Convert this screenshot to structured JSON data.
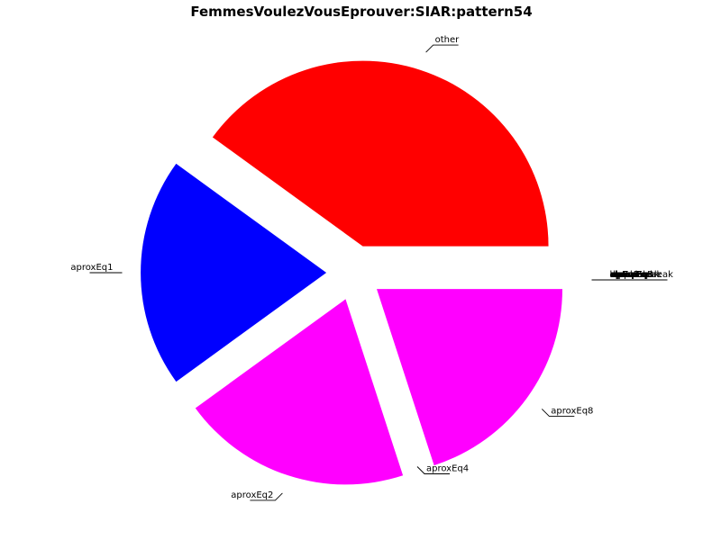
{
  "chart_data": {
    "type": "pie",
    "title": "FemmesVoulezVousEprouver:SIAR:pattern54",
    "slices": [
      {
        "label": "other",
        "value": 40,
        "color": "#ff0000",
        "exploded": true
      },
      {
        "label": "aproxEq1",
        "value": 20,
        "color": "#0000ff",
        "exploded": true
      },
      {
        "label": "aproxEq2",
        "value": 20,
        "color": "#ff00ff",
        "exploded": true
      },
      {
        "label": "aproxEq4",
        "value": 0,
        "color": "#ff00ff",
        "exploded": false
      },
      {
        "label": "aproxEq8",
        "value": 20,
        "color": "#ff00ff",
        "exploded": true
      }
    ],
    "overlapping_labels": [
      "breakEq",
      "aprox",
      "upEq",
      "downEq",
      "aproxEq",
      "upEqBreak",
      "downEqBreak",
      "up",
      "down",
      "upBreak",
      "downBreak",
      "unpaired"
    ]
  }
}
